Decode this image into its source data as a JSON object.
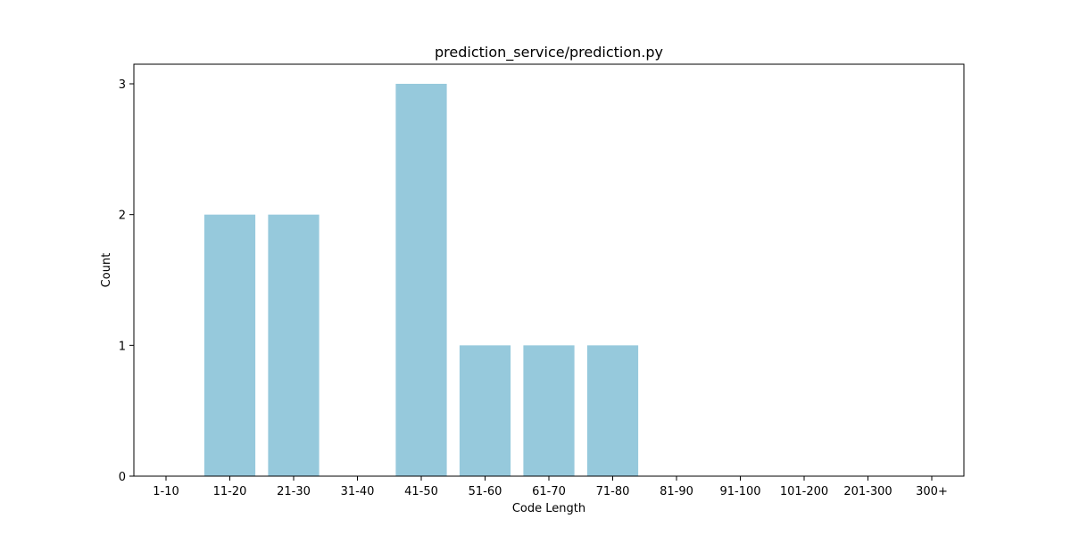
{
  "chart_data": {
    "type": "bar",
    "title": "prediction_service/prediction.py",
    "xlabel": "Code Length",
    "ylabel": "Count",
    "categories": [
      "1-10",
      "11-20",
      "21-30",
      "31-40",
      "41-50",
      "51-60",
      "61-70",
      "71-80",
      "81-90",
      "91-100",
      "101-200",
      "201-300",
      "300+"
    ],
    "values": [
      0,
      2,
      2,
      0,
      3,
      1,
      1,
      1,
      0,
      0,
      0,
      0,
      0
    ],
    "ylim": [
      0,
      3.15
    ],
    "yticks": [
      0,
      1,
      2,
      3
    ],
    "bar_color": "#96c9dc",
    "grid": false,
    "legend": "none"
  }
}
